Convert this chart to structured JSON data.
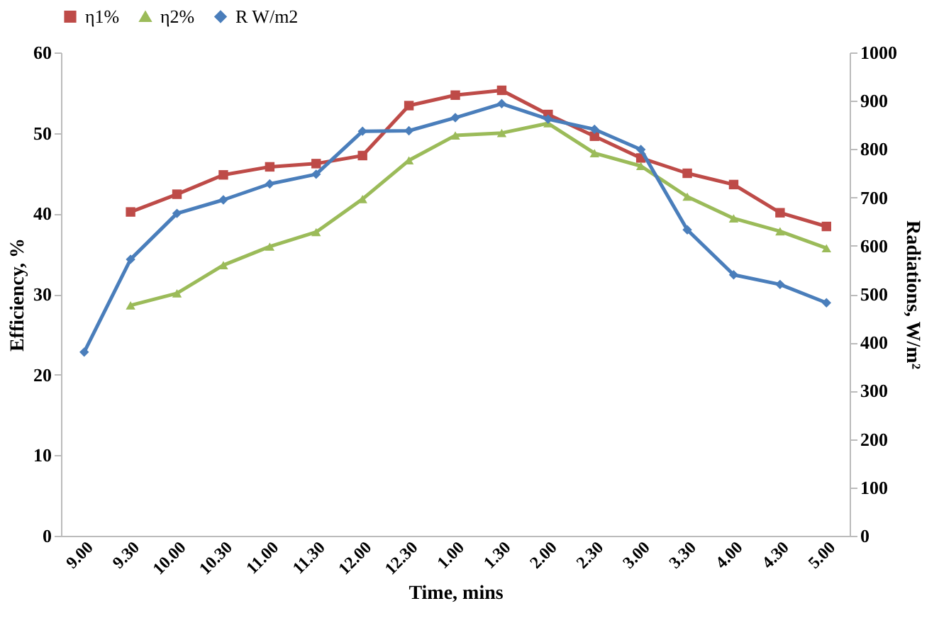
{
  "chart_data": {
    "type": "line",
    "xlabel": "Time, mins",
    "ylabel": "Efficiency, %",
    "y2label": "Radiations, W/m²",
    "categories": [
      "9.00",
      "9.30",
      "10.00",
      "10.30",
      "11.00",
      "11.30",
      "12.00",
      "12.30",
      "1.00",
      "1.30",
      "2.00",
      "2.30",
      "3.00",
      "3.30",
      "4.00",
      "4.30",
      "5.00"
    ],
    "series": [
      {
        "name": "η1%",
        "color": "#be4b48",
        "marker": "square",
        "values": [
          null,
          40.2,
          42.4,
          44.8,
          45.8,
          46.2,
          47.2,
          53.4,
          54.7,
          55.3,
          52.3,
          49.6,
          46.9,
          45.0,
          43.6,
          40.1,
          38.4
        ]
      },
      {
        "name": "η2%",
        "color": "#9bbb59",
        "marker": "triangle",
        "values": [
          null,
          28.6,
          30.1,
          33.6,
          35.9,
          37.7,
          41.8,
          46.6,
          49.7,
          50.0,
          51.2,
          47.5,
          45.9,
          42.1,
          39.4,
          37.8,
          35.7
        ]
      },
      {
        "name": "R W/m2",
        "color": "#4a7ebb",
        "marker": "diamond",
        "axis": "y2",
        "values": [
          380,
          572,
          667,
          695,
          728,
          748,
          837,
          838,
          865,
          894,
          862,
          841,
          799,
          633,
          540,
          520,
          482
        ]
      }
    ],
    "ylim": [
      0,
      60
    ],
    "yticks": [
      0,
      10,
      20,
      30,
      40,
      50,
      60
    ],
    "y2lim": [
      0,
      1000
    ],
    "y2ticks": [
      0,
      100,
      200,
      300,
      400,
      500,
      600,
      700,
      800,
      900,
      1000
    ],
    "legend": "top",
    "grid": false,
    "line_style": "solid"
  }
}
